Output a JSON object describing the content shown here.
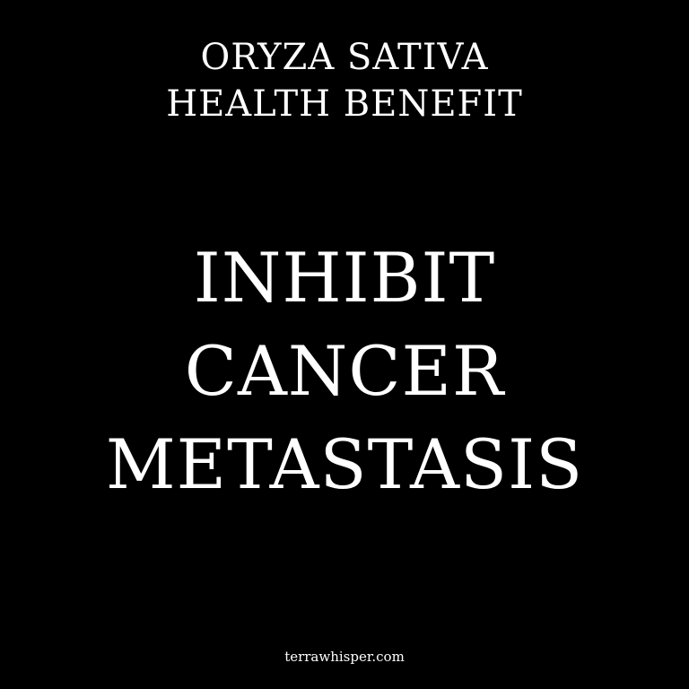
{
  "header": {
    "lines": [
      "ORYZA SATIVA",
      "HEALTH BENEFIT"
    ]
  },
  "headline": {
    "lines": [
      "INHIBIT",
      "CANCER",
      "METASTASIS"
    ]
  },
  "footer": {
    "site": "terrawhisper.com"
  },
  "colors": {
    "background": "#000000",
    "text": "#ffffff"
  }
}
